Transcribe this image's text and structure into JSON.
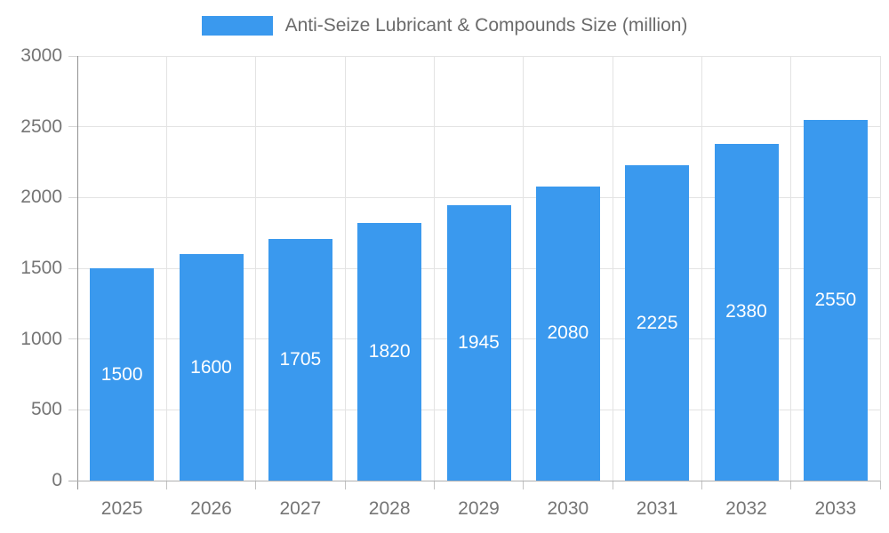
{
  "legend": {
    "label": "Anti-Seize Lubricant & Compounds Size (million)"
  },
  "chart_data": {
    "type": "bar",
    "title": "Anti-Seize Lubricant & Compounds Size (million)",
    "categories": [
      "2025",
      "2026",
      "2027",
      "2028",
      "2029",
      "2030",
      "2031",
      "2032",
      "2033"
    ],
    "values": [
      1500,
      1600,
      1705,
      1820,
      1945,
      2080,
      2225,
      2380,
      2550
    ],
    "xlabel": "",
    "ylabel": "",
    "ylim": [
      0,
      3000
    ],
    "yticks": [
      0,
      500,
      1000,
      1500,
      2000,
      2500,
      3000
    ],
    "legend_position": "top",
    "grid": true,
    "data_labels_position": "center-of-bar",
    "colors": {
      "bar": "#3A99EE",
      "value_label": "#ffffff",
      "axis_text": "#757575",
      "legend_text": "#6b6b6b",
      "gridline": "#e3e3e3",
      "background": "#ffffff"
    }
  }
}
